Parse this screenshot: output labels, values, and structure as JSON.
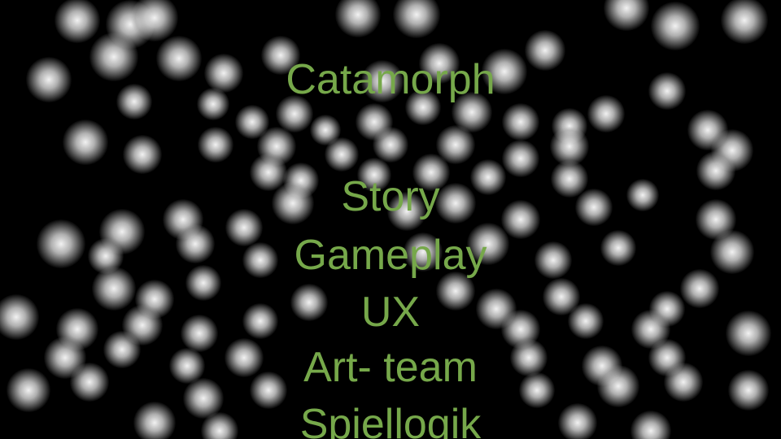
{
  "title": "Catamorph",
  "items": [
    "Story",
    "Gameplay",
    "UX",
    "Art- team",
    "Spiellogik"
  ],
  "colors": {
    "background": "#000000",
    "text": "#76a84a",
    "orb": "#ffffff"
  }
}
